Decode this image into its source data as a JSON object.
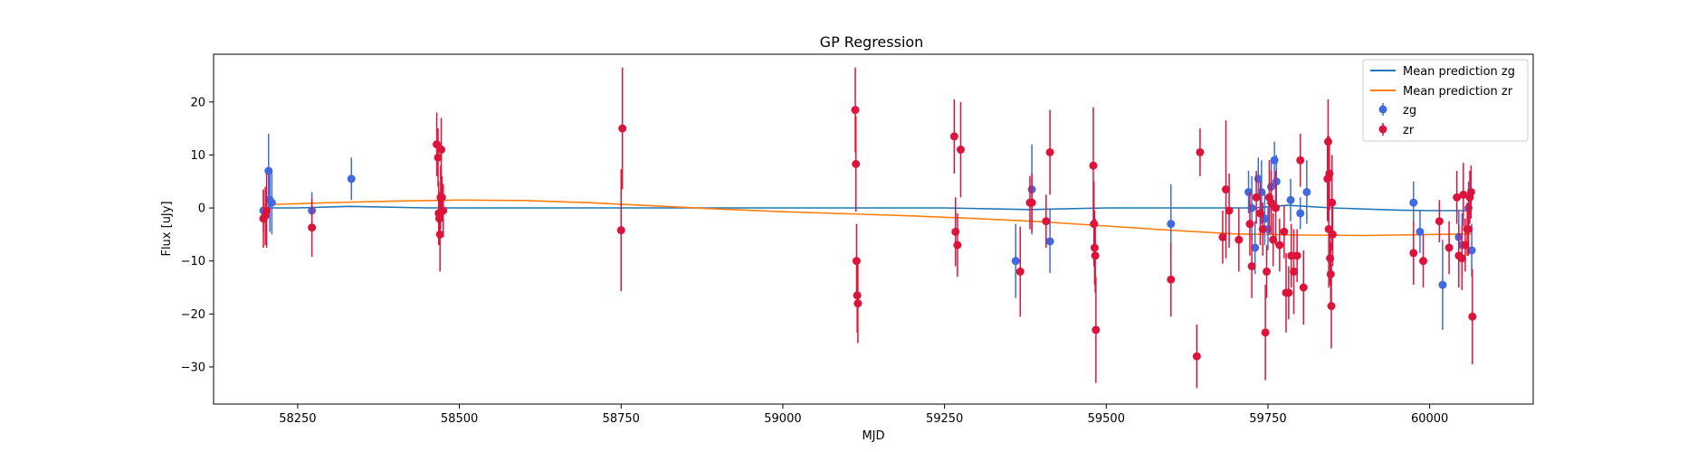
{
  "chart_data": {
    "type": "scatter",
    "title": "GP Regression",
    "xlabel": "MJD",
    "ylabel": "Flux [uJy]",
    "xlim": [
      58120,
      60160
    ],
    "ylim": [
      -37,
      29
    ],
    "xticks": [
      58250,
      58500,
      58750,
      59000,
      59250,
      59500,
      59750,
      60000
    ],
    "yticks": [
      -30,
      -20,
      -10,
      0,
      10,
      20
    ],
    "legend_position": "top-right",
    "grid": false,
    "lines": [
      {
        "name": "Mean prediction zg",
        "color": "#1f77b4",
        "points": [
          [
            58197,
            0
          ],
          [
            58250,
            0
          ],
          [
            58330,
            0.3
          ],
          [
            58450,
            0
          ],
          [
            58600,
            0
          ],
          [
            58800,
            0
          ],
          [
            59000,
            0
          ],
          [
            59250,
            0
          ],
          [
            59380,
            -0.3
          ],
          [
            59500,
            0
          ],
          [
            59650,
            0
          ],
          [
            59730,
            0
          ],
          [
            59780,
            0.5
          ],
          [
            59850,
            0
          ],
          [
            59950,
            -0.4
          ],
          [
            60000,
            -0.5
          ],
          [
            60065,
            -0.5
          ]
        ]
      },
      {
        "name": "Mean prediction zr",
        "color": "#ff7f0e",
        "points": [
          [
            58197,
            0.6
          ],
          [
            58300,
            1.0
          ],
          [
            58400,
            1.3
          ],
          [
            58500,
            1.5
          ],
          [
            58600,
            1.4
          ],
          [
            58700,
            1.0
          ],
          [
            58800,
            0.4
          ],
          [
            58900,
            -0.2
          ],
          [
            59000,
            -0.7
          ],
          [
            59100,
            -1.1
          ],
          [
            59200,
            -1.5
          ],
          [
            59300,
            -2.0
          ],
          [
            59400,
            -2.6
          ],
          [
            59500,
            -3.4
          ],
          [
            59600,
            -4.2
          ],
          [
            59700,
            -4.9
          ],
          [
            59800,
            -5.1
          ],
          [
            59900,
            -5.2
          ],
          [
            60000,
            -5.0
          ],
          [
            60065,
            -4.9
          ]
        ]
      }
    ],
    "series": [
      {
        "name": "zg",
        "color": "#4169e1",
        "points": [
          [
            58197,
            -0.5,
            4
          ],
          [
            58205,
            7,
            7
          ],
          [
            58207,
            1.5,
            6
          ],
          [
            58210,
            1,
            6
          ],
          [
            58272,
            -0.5,
            3.5
          ],
          [
            58333,
            5.5,
            4
          ],
          [
            59360,
            -10,
            7
          ],
          [
            59385,
            3.5,
            8.5
          ],
          [
            59413,
            -6.3,
            6
          ],
          [
            59600,
            -3,
            7.5
          ],
          [
            59720,
            3,
            4
          ],
          [
            59725,
            0,
            6
          ],
          [
            59730,
            -7.5,
            5
          ],
          [
            59735,
            5.5,
            4
          ],
          [
            59740,
            3,
            6
          ],
          [
            59745,
            -2,
            5
          ],
          [
            59750,
            -4,
            4
          ],
          [
            59755,
            4,
            5
          ],
          [
            59760,
            9,
            3.5
          ],
          [
            59763,
            5,
            5
          ],
          [
            59785,
            1.5,
            4
          ],
          [
            59800,
            -1,
            3
          ],
          [
            59810,
            3,
            6
          ],
          [
            59975,
            1,
            4
          ],
          [
            59985,
            -4.5,
            4
          ],
          [
            60020,
            -14.5,
            8.5
          ],
          [
            60045,
            -5.5,
            5
          ],
          [
            60050,
            -7,
            6
          ],
          [
            60060,
            0,
            5
          ],
          [
            60065,
            -8,
            5
          ]
        ]
      },
      {
        "name": "zr",
        "color": "#dc143c",
        "points": [
          [
            58197,
            -2,
            5.5
          ],
          [
            58200,
            -1.5,
            5.5
          ],
          [
            58202,
            -0.5,
            7
          ],
          [
            58272,
            -3.7,
            5.5
          ],
          [
            58465,
            12,
            6
          ],
          [
            58467,
            9.5,
            5.5
          ],
          [
            58468,
            -1,
            6
          ],
          [
            58469,
            -2,
            5
          ],
          [
            58470,
            -5,
            7
          ],
          [
            58471,
            2,
            6
          ],
          [
            58472,
            11,
            6
          ],
          [
            58473,
            2,
            4
          ],
          [
            58475,
            -0.5,
            5
          ],
          [
            58750,
            -4.2,
            11.5
          ],
          [
            58752,
            15,
            11.5
          ],
          [
            59112,
            18.5,
            8
          ],
          [
            59113,
            8.3,
            9
          ],
          [
            59114,
            -10,
            7
          ],
          [
            59115,
            -16.5,
            7
          ],
          [
            59116,
            -18,
            7.5
          ],
          [
            59265,
            13.5,
            7
          ],
          [
            59267,
            -4.5,
            6.5
          ],
          [
            59270,
            -7,
            6
          ],
          [
            59275,
            11,
            9
          ],
          [
            59367,
            -12,
            8.5
          ],
          [
            59382,
            1,
            5
          ],
          [
            59385,
            1,
            5.5
          ],
          [
            59407,
            -2.5,
            5
          ],
          [
            59413,
            10.5,
            8
          ],
          [
            59480,
            8,
            11
          ],
          [
            59481,
            -3,
            8
          ],
          [
            59482,
            -7.5,
            7
          ],
          [
            59483,
            -9,
            7
          ],
          [
            59484,
            -23,
            10
          ],
          [
            59600,
            -13.5,
            7
          ],
          [
            59640,
            -28,
            6
          ],
          [
            59645,
            10.5,
            4.5
          ],
          [
            59680,
            -5.5,
            5
          ],
          [
            59685,
            3.5,
            13
          ],
          [
            59690,
            -0.5,
            7
          ],
          [
            59705,
            -6,
            6
          ],
          [
            59722,
            -3,
            6
          ],
          [
            59725,
            -11,
            6
          ],
          [
            59732,
            2,
            5
          ],
          [
            59738,
            -1,
            6
          ],
          [
            59742,
            -4,
            5
          ],
          [
            59746,
            -23.5,
            9
          ],
          [
            59748,
            -12,
            5
          ],
          [
            59752,
            2,
            7
          ],
          [
            59755,
            1,
            6
          ],
          [
            59758,
            -6,
            5
          ],
          [
            59762,
            0,
            7
          ],
          [
            59768,
            -7,
            5
          ],
          [
            59775,
            -4.5,
            5
          ],
          [
            59778,
            -16,
            7.5
          ],
          [
            59782,
            -16,
            5
          ],
          [
            59786,
            -9,
            6
          ],
          [
            59790,
            -12,
            8
          ],
          [
            59795,
            -9,
            5
          ],
          [
            59800,
            9,
            5
          ],
          [
            59805,
            -15,
            7
          ],
          [
            59842,
            5.5,
            8
          ],
          [
            59843,
            12.5,
            8
          ],
          [
            59844,
            -4,
            11
          ],
          [
            59845,
            6.5,
            7
          ],
          [
            59846,
            -9.5,
            5
          ],
          [
            59847,
            -12.5,
            6
          ],
          [
            59848,
            -18.5,
            8
          ],
          [
            59849,
            1,
            9
          ],
          [
            59850,
            -5,
            6
          ],
          [
            59975,
            -8.5,
            6
          ],
          [
            59990,
            -10,
            5
          ],
          [
            60015,
            -2.5,
            4
          ],
          [
            60030,
            -7.5,
            5
          ],
          [
            60042,
            2,
            5
          ],
          [
            60045,
            -9,
            6
          ],
          [
            60050,
            -9.5,
            6
          ],
          [
            60052,
            2.5,
            6
          ],
          [
            60055,
            -7,
            5
          ],
          [
            60058,
            -4,
            5
          ],
          [
            60060,
            -4,
            5
          ],
          [
            60062,
            2,
            5
          ],
          [
            60064,
            3,
            5
          ],
          [
            60066,
            -20.5,
            9
          ]
        ]
      }
    ]
  }
}
